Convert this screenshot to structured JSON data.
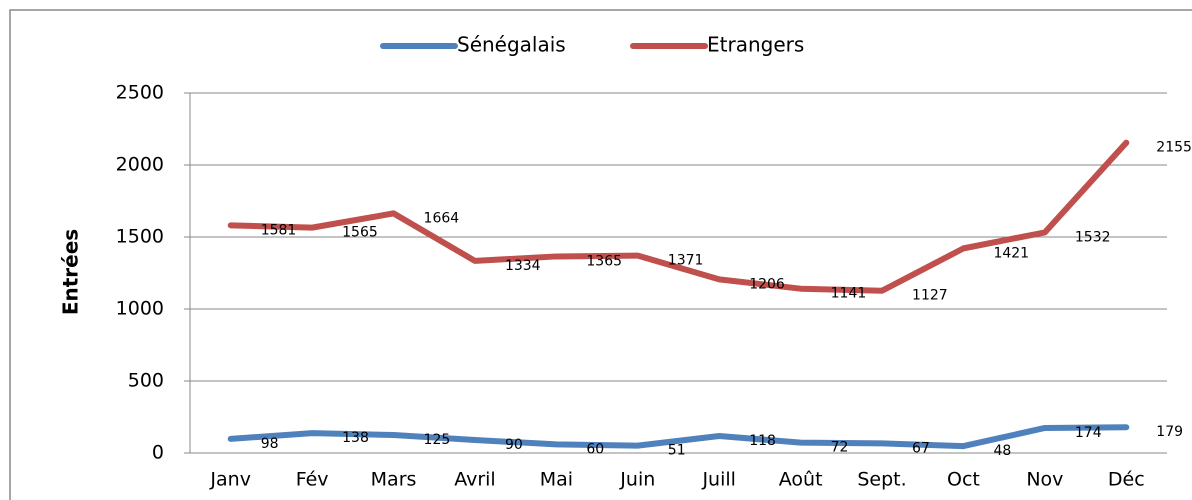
{
  "chart_data": {
    "type": "line",
    "y_label": "Entrées",
    "categories": [
      "Janv",
      "Fév",
      "Mars",
      "Avril",
      "Mai",
      "Juin",
      "Juill",
      "Août",
      "Sept.",
      "Oct",
      "Nov",
      "Déc"
    ],
    "series": [
      {
        "name": "Sénégalais",
        "color": "#4f81bd",
        "values": [
          98,
          138,
          125,
          90,
          60,
          51,
          118,
          72,
          67,
          48,
          174,
          179
        ]
      },
      {
        "name": "Etrangers",
        "color": "#c0504d",
        "values": [
          1581,
          1565,
          1664,
          1334,
          1365,
          1371,
          1206,
          1141,
          1127,
          1421,
          1532,
          2155
        ]
      }
    ],
    "ylim": [
      0,
      2500
    ],
    "yticks": [
      0,
      500,
      1000,
      1500,
      2000,
      2500
    ],
    "grid": true,
    "legend": "top"
  }
}
